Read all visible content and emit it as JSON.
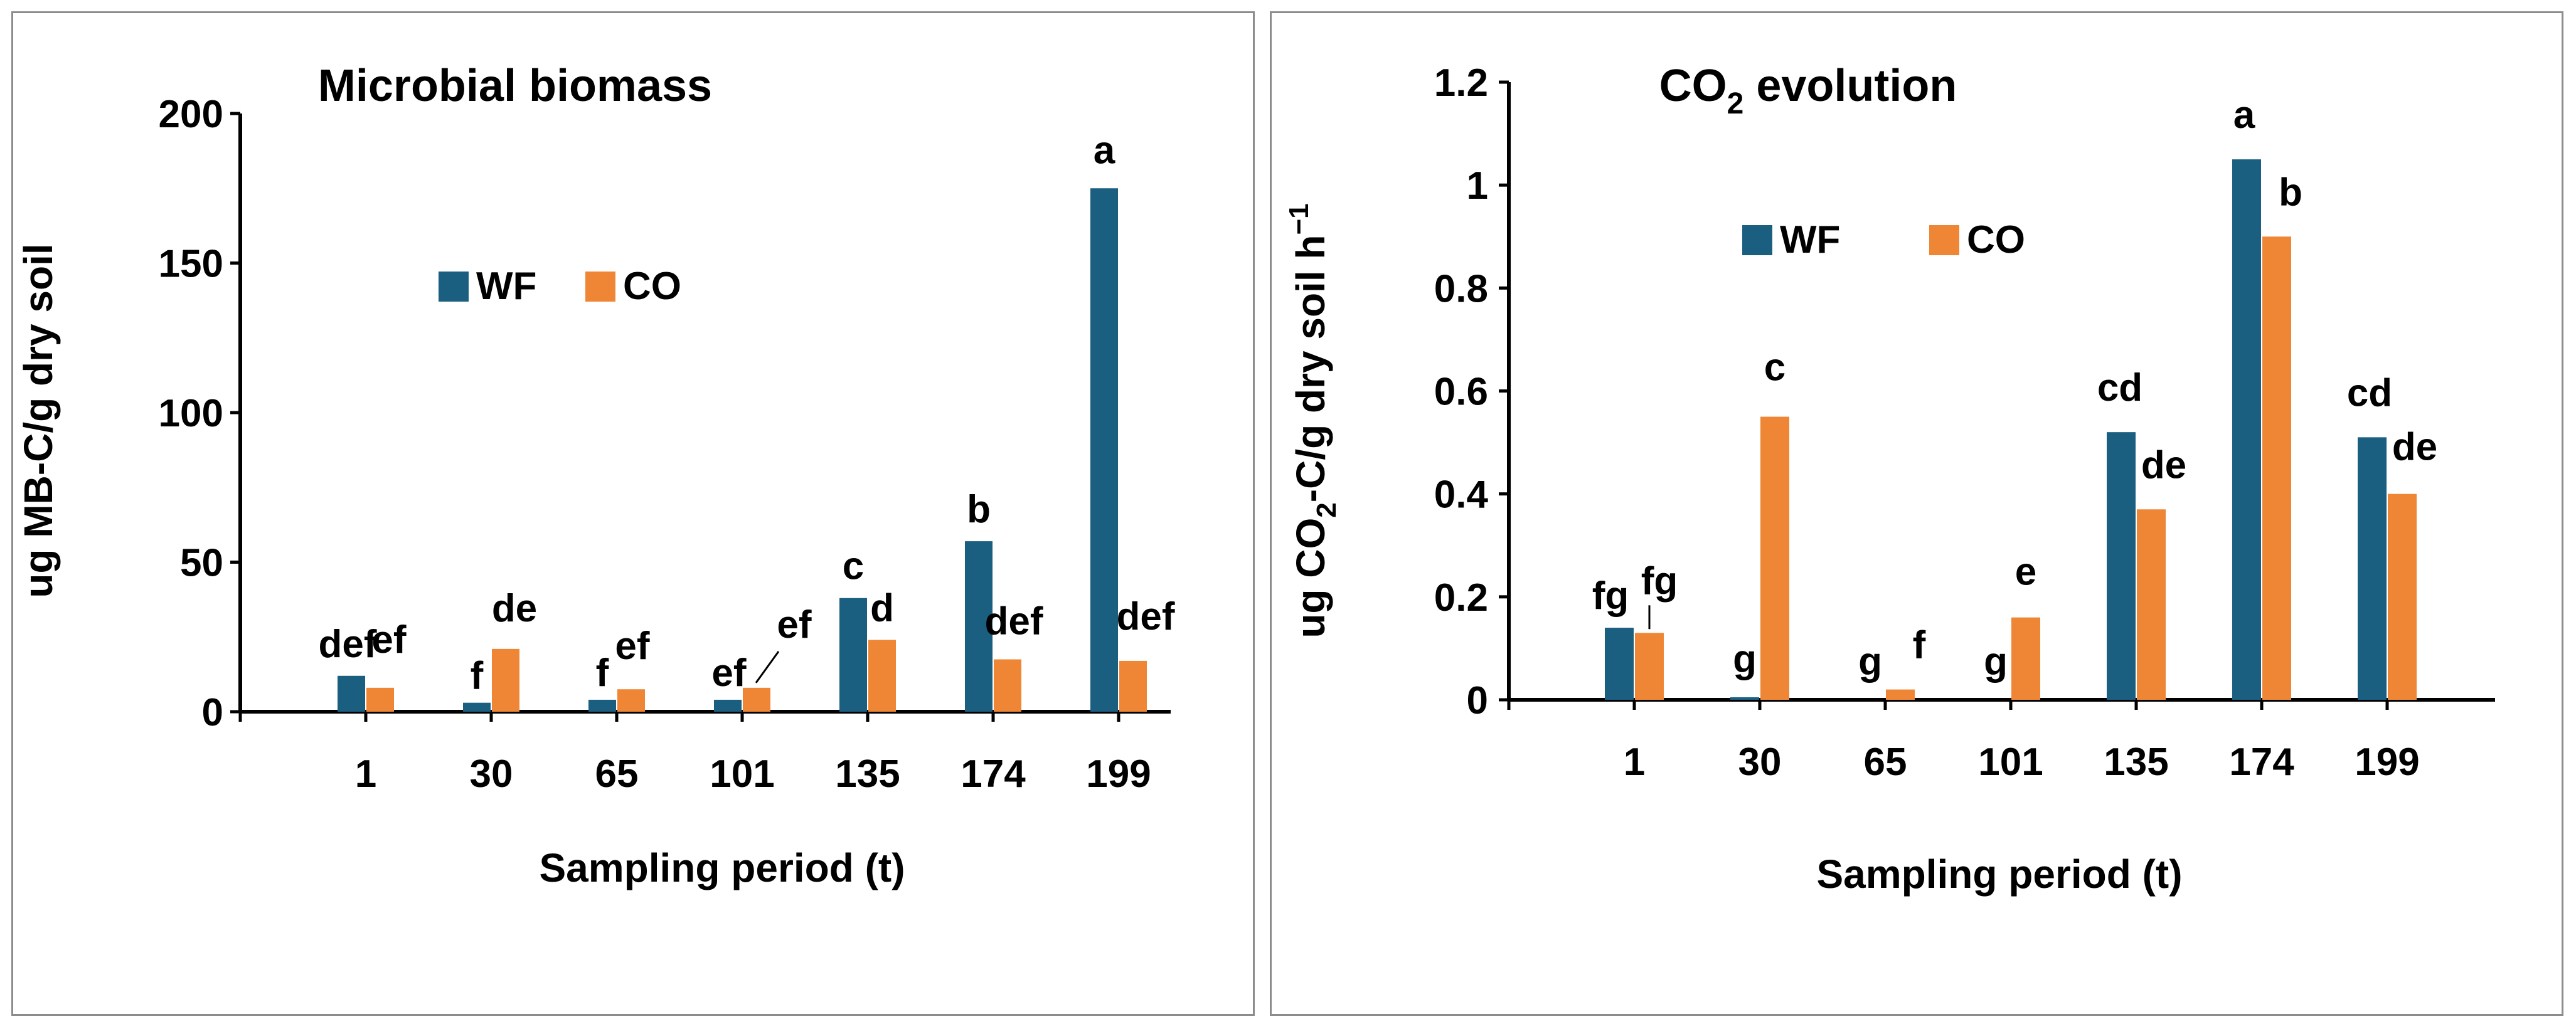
{
  "colors": {
    "WF": "#1a5e80",
    "CO": "#ef8636",
    "axis": "#000000",
    "border": "#8c8c8c"
  },
  "chart_data": [
    {
      "type": "bar",
      "title": "Microbial biomass",
      "xlabel": "Sampling period (t)",
      "ylabel": "ug MB-C/g dry soil",
      "ylim": [
        0,
        200
      ],
      "yticks": [
        "0",
        "50",
        "100",
        "150",
        "200"
      ],
      "categories": [
        "1",
        "30",
        "65",
        "101",
        "135",
        "174",
        "199"
      ],
      "series": [
        {
          "name": "WF",
          "values": [
            12,
            3,
            4,
            4,
            38,
            57,
            175
          ]
        },
        {
          "name": "CO",
          "values": [
            8,
            21,
            7.5,
            8,
            24,
            17.5,
            17
          ]
        }
      ],
      "letters": {
        "WF": [
          "def",
          "f",
          "f",
          "ef",
          "c",
          "b",
          "a"
        ],
        "CO": [
          "ef",
          "de",
          "ef",
          "ef",
          "d",
          "def",
          "def"
        ]
      },
      "legend": [
        "WF",
        "CO"
      ],
      "legend_position": "upper-center"
    },
    {
      "type": "bar",
      "title": "CO2 evolution",
      "title_parts": [
        "CO",
        "2",
        " evolution"
      ],
      "xlabel": "Sampling period (t)",
      "ylabel": "ug CO2-C/g dry soil h-1",
      "ylabel_parts": [
        "ug CO",
        "2",
        "-C/g dry soil h",
        "−1"
      ],
      "ylim": [
        0,
        1.2
      ],
      "yticks": [
        "0",
        "0.2",
        "0.4",
        "0.6",
        "0.8",
        "1",
        "1.2"
      ],
      "categories": [
        "1",
        "30",
        "65",
        "101",
        "135",
        "174",
        "199"
      ],
      "series": [
        {
          "name": "WF",
          "values": [
            0.14,
            0.005,
            0,
            0,
            0.52,
            1.05,
            0.51
          ]
        },
        {
          "name": "CO",
          "values": [
            0.13,
            0.55,
            0.02,
            0.16,
            0.37,
            0.9,
            0.4
          ]
        }
      ],
      "letters": {
        "WF": [
          "fg",
          "g",
          "g",
          "g",
          "cd",
          "a",
          "cd"
        ],
        "CO": [
          "fg",
          "c",
          "f",
          "e",
          "de",
          "b",
          "de"
        ]
      },
      "legend": [
        "WF",
        "CO"
      ],
      "legend_position": "upper-center"
    }
  ]
}
